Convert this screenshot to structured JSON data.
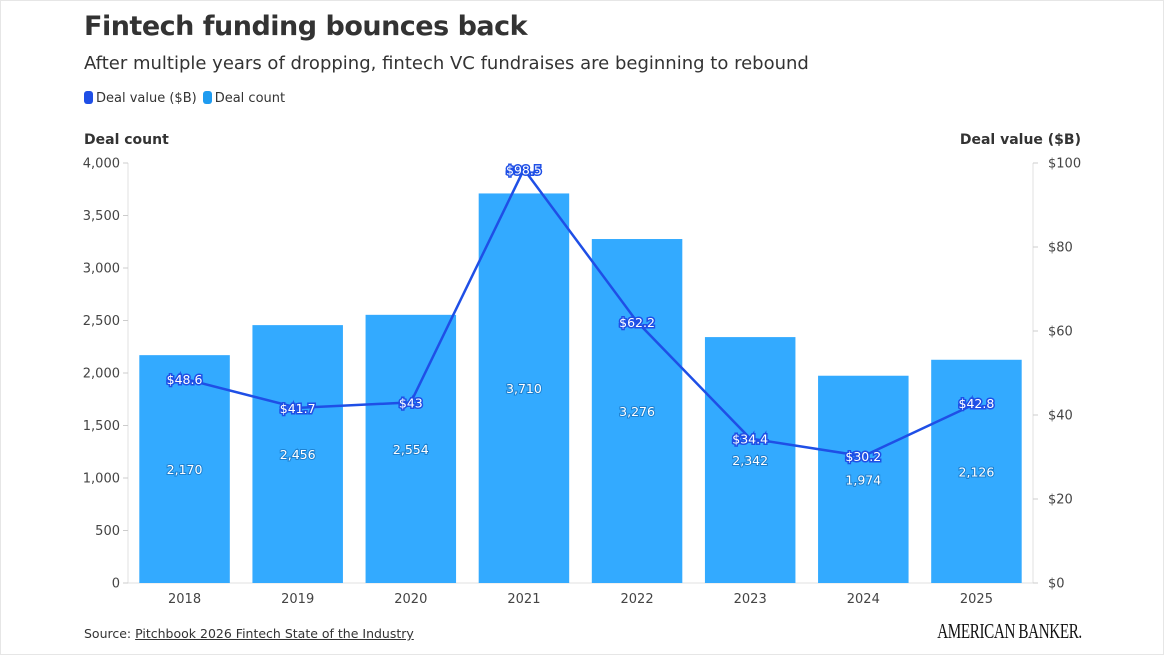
{
  "header": {
    "title": "Fintech funding bounces back",
    "subtitle": "After multiple years of dropping, fintech VC fundraises are beginning to rebound"
  },
  "footer": {
    "source_prefix": "Source: ",
    "source_link": "Pitchbook 2026 Fintech State of the Industry",
    "logo": "AMERICAN BANKER."
  },
  "chart_data": {
    "type": "bar+line",
    "categories": [
      "2018",
      "2019",
      "2020",
      "2021",
      "2022",
      "2023",
      "2024",
      "2025"
    ],
    "series": [
      {
        "name": "Deal value ($B)",
        "type": "line",
        "axis": "right",
        "color": "#1f4fe6",
        "values": [
          48.6,
          41.7,
          43,
          98.5,
          62.2,
          34.4,
          30.2,
          42.8
        ],
        "labels": [
          "$48.6",
          "$41.7",
          "$43",
          "$98.5",
          "$62.2",
          "$34.4",
          "$30.2",
          "$42.8"
        ]
      },
      {
        "name": "Deal count",
        "type": "bar",
        "axis": "left",
        "color": "#33aaff",
        "values": [
          2170,
          2456,
          2554,
          3710,
          3276,
          2342,
          1974,
          2126
        ],
        "labels": [
          "2,170",
          "2,456",
          "2,554",
          "3,710",
          "3,276",
          "2,342",
          "1,974",
          "2,126"
        ]
      }
    ],
    "left_axis": {
      "title": "Deal count",
      "range": [
        0,
        4000
      ],
      "ticks": [
        "0",
        "500",
        "1,000",
        "1,500",
        "2,000",
        "2,500",
        "3,000",
        "3,500",
        "4,000"
      ]
    },
    "right_axis": {
      "title": "Deal value ($B)",
      "range": [
        0,
        100
      ],
      "ticks": [
        "$0",
        "$20",
        "$40",
        "$60",
        "$80",
        "$100"
      ]
    },
    "legend_position": "top-left",
    "grid": false
  }
}
